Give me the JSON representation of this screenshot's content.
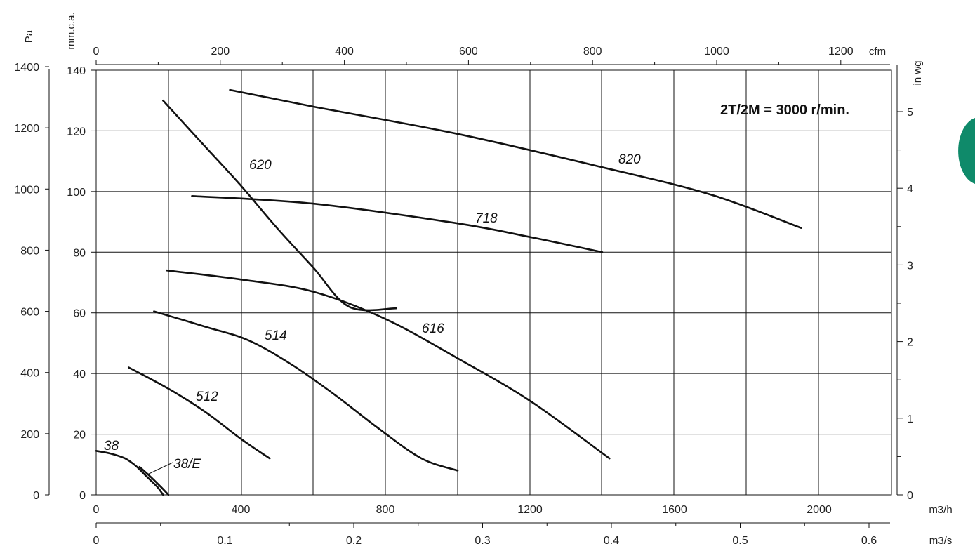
{
  "chart_data": {
    "type": "line",
    "title": "2T/2M = 3000 r/min.",
    "accent_color": "#0f8a6a",
    "x_axis_bottom": {
      "unit": "m3/h",
      "min": 0,
      "max": 2200,
      "ticks": [
        0,
        400,
        800,
        1200,
        1600,
        2000
      ]
    },
    "x_axis_secondary": {
      "unit": "m3/s",
      "ticks": [
        "0",
        "0.1",
        "0.2",
        "0.3",
        "0.4",
        "0.5",
        "0.6"
      ]
    },
    "x_axis_top": {
      "unit": "cfm",
      "ticks": [
        "0",
        "200",
        "400",
        "600",
        "800",
        "1000",
        "1200"
      ]
    },
    "y_axis_left_pa": {
      "unit": "Pa",
      "ticks": [
        "0",
        "200",
        "400",
        "600",
        "800",
        "1000",
        "1200",
        "1400"
      ]
    },
    "y_axis_left_mmca": {
      "unit": "mm.c.a.",
      "min": 0,
      "max": 140,
      "ticks": [
        "0",
        "20",
        "40",
        "60",
        "80",
        "100",
        "120",
        "140"
      ]
    },
    "y_axis_right": {
      "unit": "in wg",
      "ticks": [
        "0",
        "1",
        "2",
        "3",
        "4",
        "5"
      ]
    },
    "grid": true,
    "series": [
      {
        "name": "38",
        "label": "38",
        "points": [
          [
            0,
            14.5
          ],
          [
            40,
            13.6
          ],
          [
            80,
            12
          ],
          [
            110,
            9.5
          ],
          [
            140,
            6
          ],
          [
            170,
            2.5
          ],
          [
            185,
            0
          ]
        ]
      },
      {
        "name": "38/E",
        "label": "38/E",
        "points": [
          [
            120,
            9.2
          ],
          [
            150,
            6
          ],
          [
            180,
            2.5
          ],
          [
            200,
            0
          ]
        ]
      },
      {
        "name": "512",
        "label": "512",
        "points": [
          [
            90,
            42
          ],
          [
            200,
            35
          ],
          [
            300,
            27.5
          ],
          [
            400,
            18.5
          ],
          [
            480,
            12
          ]
        ]
      },
      {
        "name": "514",
        "label": "514",
        "points": [
          [
            160,
            60.5
          ],
          [
            300,
            55.5
          ],
          [
            420,
            51
          ],
          [
            540,
            43
          ],
          [
            660,
            33
          ],
          [
            780,
            22
          ],
          [
            900,
            12
          ],
          [
            1000,
            8
          ]
        ]
      },
      {
        "name": "616",
        "label": "616",
        "points": [
          [
            195,
            74
          ],
          [
            400,
            71
          ],
          [
            600,
            67
          ],
          [
            800,
            58
          ],
          [
            1000,
            45
          ],
          [
            1200,
            31
          ],
          [
            1420,
            12
          ]
        ]
      },
      {
        "name": "620",
        "label": "620",
        "points": [
          [
            185,
            130
          ],
          [
            300,
            115
          ],
          [
            400,
            102
          ],
          [
            500,
            88
          ],
          [
            600,
            75
          ],
          [
            700,
            62
          ],
          [
            830,
            61.5
          ]
        ]
      },
      {
        "name": "718",
        "label": "718",
        "points": [
          [
            265,
            98.5
          ],
          [
            600,
            96
          ],
          [
            1000,
            89.5
          ],
          [
            1200,
            85
          ],
          [
            1400,
            80
          ]
        ]
      },
      {
        "name": "820",
        "label": "820",
        "points": [
          [
            370,
            133.5
          ],
          [
            600,
            128
          ],
          [
            1000,
            119
          ],
          [
            1400,
            108
          ],
          [
            1700,
            99
          ],
          [
            1950,
            88
          ]
        ]
      }
    ]
  }
}
